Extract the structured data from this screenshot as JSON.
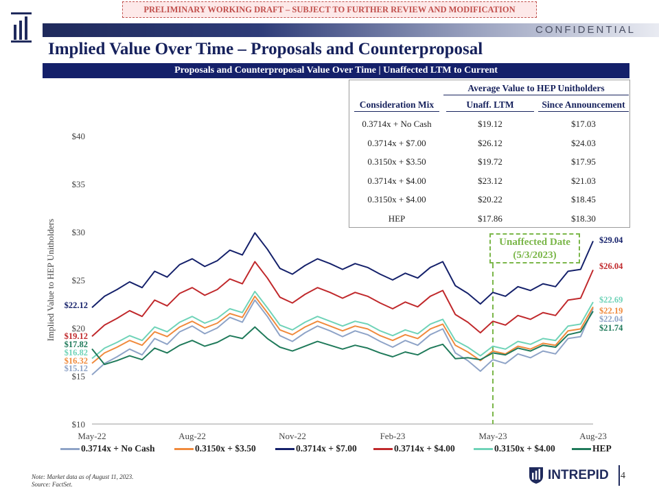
{
  "banner": "PRELIMINARY WORKING DRAFT – SUBJECT TO FURTHER REVIEW AND MODIFICATION",
  "confidential": "CONFIDENTIAL",
  "title": "Implied Value Over Time – Proposals and Counterproposal",
  "subtitle": "Proposals and Counterproposal Value Over Time | Unaffected LTM to Current",
  "table": {
    "group_header": "Average Value to HEP Unitholders",
    "columns": [
      "Consideration Mix",
      "Unaff. LTM",
      "Since Announcement"
    ],
    "rows": [
      [
        "0.3714x + No Cash",
        "$19.12",
        "$17.03"
      ],
      [
        "0.3714x + $7.00",
        "$26.12",
        "$24.03"
      ],
      [
        "0.3150x + $3.50",
        "$19.72",
        "$17.95"
      ],
      [
        "0.3714x + $4.00",
        "$23.12",
        "$21.03"
      ],
      [
        "0.3150x + $4.00",
        "$20.22",
        "$18.45"
      ],
      [
        "HEP",
        "$17.86",
        "$18.30"
      ]
    ]
  },
  "annotation": {
    "line1": "Unaffected Date",
    "line2": "(5/3/2023)"
  },
  "note": "Note: Market data as of August 11, 2023.",
  "source": "Source: FactSet.",
  "brand": "INTREPID",
  "page_number": "4",
  "colors": {
    "navy": "#14206a",
    "red": "#c0504d",
    "green": "#7ab648"
  },
  "chart_data": {
    "type": "line",
    "ylabel": "Implied Value to HEP Unitholders",
    "ylim": [
      10,
      40
    ],
    "yticks": [
      "$10",
      "$15",
      "$20",
      "$25",
      "$30",
      "$35",
      "$40"
    ],
    "xticks": [
      "May-22",
      "Aug-22",
      "Nov-22",
      "Feb-23",
      "May-23",
      "Aug-23"
    ],
    "unaffected_marker": "May-23",
    "series": [
      {
        "name": "0.3714x + No Cash",
        "color": "#8ea3c7",
        "start_label": "$15.12",
        "end_label": "$22.04",
        "values": [
          15.12,
          16.3,
          17.0,
          17.8,
          17.2,
          18.9,
          18.3,
          19.6,
          20.2,
          19.4,
          20.0,
          21.1,
          20.6,
          22.9,
          21.2,
          19.2,
          18.6,
          19.5,
          20.2,
          19.7,
          19.1,
          19.7,
          19.3,
          18.6,
          18.0,
          18.7,
          18.2,
          19.3,
          19.9,
          17.4,
          16.6,
          15.5,
          16.7,
          16.3,
          17.3,
          16.9,
          17.6,
          17.3,
          18.9,
          19.1,
          22.04
        ]
      },
      {
        "name": "0.3150x + $3.50",
        "color": "#f08a3c",
        "start_label": "$16.32",
        "end_label": "$22.19",
        "values": [
          16.32,
          17.4,
          18.0,
          18.7,
          18.2,
          19.6,
          19.1,
          20.1,
          20.7,
          20.0,
          20.5,
          21.5,
          21.1,
          23.3,
          21.6,
          19.8,
          19.3,
          20.1,
          20.7,
          20.2,
          19.7,
          20.2,
          19.9,
          19.2,
          18.7,
          19.3,
          18.9,
          19.9,
          20.4,
          18.2,
          17.5,
          16.6,
          17.6,
          17.3,
          18.1,
          17.8,
          18.4,
          18.2,
          19.7,
          19.9,
          22.19
        ]
      },
      {
        "name": "0.3714x + $7.00",
        "color": "#14206a",
        "start_label": "$22.12",
        "end_label": "$29.04",
        "values": [
          22.12,
          23.3,
          24.0,
          24.8,
          24.2,
          25.9,
          25.3,
          26.6,
          27.2,
          26.4,
          27.0,
          28.1,
          27.6,
          29.9,
          28.2,
          26.2,
          25.6,
          26.5,
          27.2,
          26.7,
          26.1,
          26.7,
          26.3,
          25.6,
          25.0,
          25.7,
          25.2,
          26.3,
          26.9,
          24.4,
          23.6,
          22.5,
          23.7,
          23.3,
          24.3,
          23.9,
          24.6,
          24.3,
          25.9,
          26.1,
          29.04
        ]
      },
      {
        "name": "0.3714x + $4.00",
        "color": "#c0282b",
        "start_label": "$19.12",
        "end_label": "$26.04",
        "values": [
          19.12,
          20.3,
          21.0,
          21.8,
          21.2,
          22.9,
          22.3,
          23.6,
          24.2,
          23.4,
          24.0,
          25.1,
          24.6,
          26.9,
          25.2,
          23.2,
          22.6,
          23.5,
          24.2,
          23.7,
          23.1,
          23.7,
          23.3,
          22.6,
          22.0,
          22.7,
          22.2,
          23.3,
          23.9,
          21.4,
          20.6,
          19.5,
          20.7,
          20.3,
          21.3,
          20.9,
          21.6,
          21.3,
          22.9,
          23.1,
          26.04
        ]
      },
      {
        "name": "0.3150x + $4.00",
        "color": "#6fd3b8",
        "start_label": "$16.82",
        "end_label": "$22.69",
        "values": [
          16.82,
          17.9,
          18.5,
          19.2,
          18.7,
          20.1,
          19.6,
          20.6,
          21.2,
          20.5,
          21.0,
          22.0,
          21.6,
          23.8,
          22.1,
          20.3,
          19.8,
          20.6,
          21.2,
          20.7,
          20.2,
          20.7,
          20.4,
          19.7,
          19.2,
          19.8,
          19.4,
          20.4,
          20.9,
          18.7,
          18.0,
          17.1,
          18.1,
          17.8,
          18.6,
          18.3,
          18.9,
          18.7,
          20.2,
          20.4,
          22.69
        ]
      },
      {
        "name": "HEP",
        "color": "#1f7a5a",
        "start_label": "$17.82",
        "end_label": "$21.74",
        "values": [
          17.82,
          16.2,
          16.6,
          17.1,
          16.7,
          17.9,
          17.4,
          18.2,
          18.7,
          18.1,
          18.5,
          19.2,
          18.9,
          20.1,
          18.9,
          18.0,
          17.6,
          18.1,
          18.6,
          18.2,
          17.8,
          18.2,
          17.9,
          17.4,
          17.0,
          17.5,
          17.2,
          17.9,
          18.3,
          16.8,
          16.9,
          16.7,
          17.4,
          17.2,
          17.9,
          17.6,
          18.2,
          18.0,
          19.3,
          19.6,
          21.74
        ]
      }
    ]
  }
}
